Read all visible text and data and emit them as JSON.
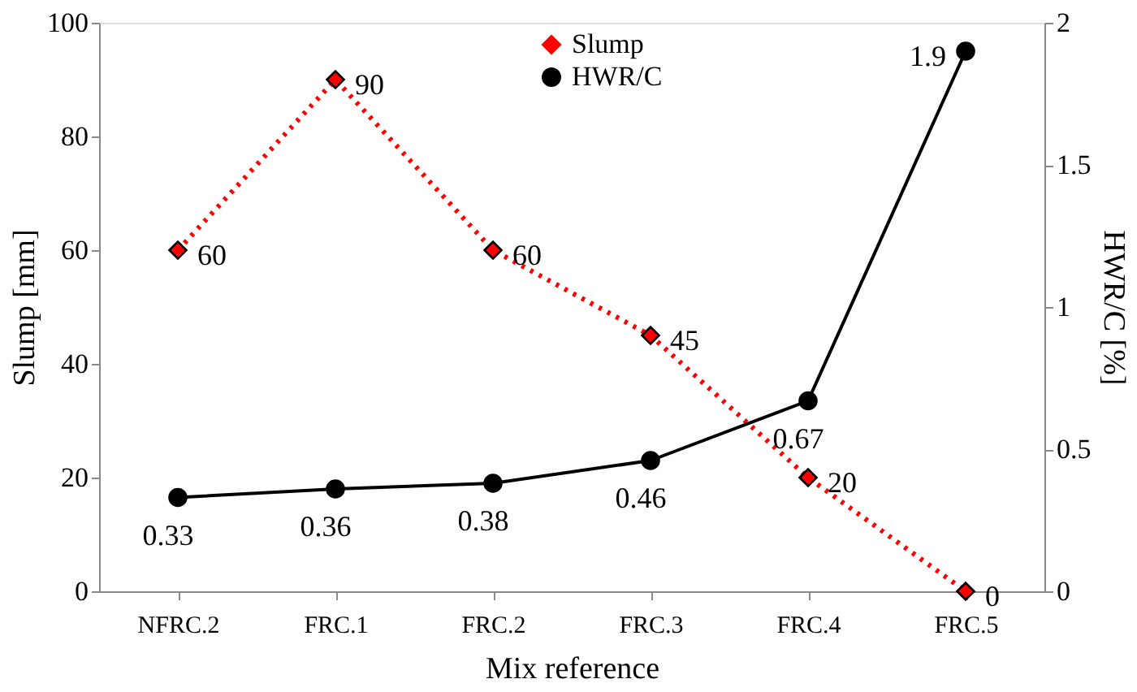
{
  "chart_data": {
    "type": "line",
    "xlabel": "Mix reference",
    "ylabel": "Slump [mm]",
    "y2label": "HWR/C [%]",
    "categories": [
      "NFRC.2",
      "FRC.1",
      "FRC.2",
      "FRC.3",
      "FRC.4",
      "FRC.5"
    ],
    "series": [
      {
        "name": "Slump",
        "color": "#ff0000",
        "values": [
          60,
          90,
          60,
          45,
          20,
          0
        ],
        "marker": "diamond",
        "line_style": "dotted"
      },
      {
        "name": "HWR/C",
        "color": "#000000",
        "values": [
          0.33,
          0.36,
          0.38,
          0.46,
          0.67,
          1.9
        ],
        "marker": "circle",
        "line_style": "solid",
        "axis": "y2"
      }
    ],
    "ylim": [
      0,
      100
    ],
    "yticks": [
      0,
      20,
      40,
      60,
      80,
      100
    ],
    "y2lim": [
      0,
      2
    ],
    "y2ticks": [
      0,
      0.5,
      1,
      1.5,
      2
    ],
    "data_labels": true,
    "legend": "top right",
    "grid": false
  }
}
